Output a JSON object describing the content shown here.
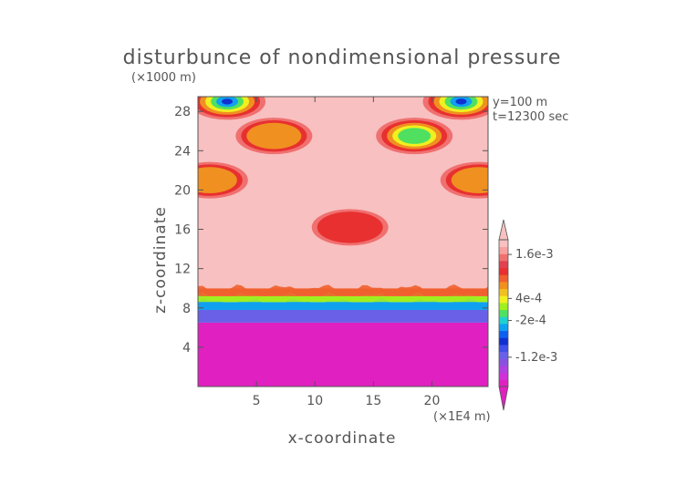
{
  "chart_data": {
    "type": "heatmap",
    "title": "disturbunce of nondimensional pressure",
    "xlabel": "x-coordinate",
    "ylabel": "z-coordinate",
    "x_unit": "(×1E4 m)",
    "y_unit": "(×1000 m)",
    "annotations": [
      "y=100 m",
      "t=12300 sec"
    ],
    "xlim": [
      0,
      24.8
    ],
    "ylim": [
      0,
      29.5
    ],
    "x_ticks": [
      5,
      10,
      15,
      20
    ],
    "x_tick_labels": [
      "5",
      "10",
      "15",
      "20"
    ],
    "y_ticks": [
      4,
      8,
      12,
      16,
      20,
      24,
      28
    ],
    "y_tick_labels": [
      "4",
      "8",
      "12",
      "16",
      "20",
      "24",
      "28"
    ],
    "colorbar": {
      "levels_min": -0.002,
      "levels_max": 0.002,
      "labels": [
        {
          "value": 0.0016,
          "text": "1.6e-3"
        },
        {
          "value": 0.0004,
          "text": "4e-4"
        },
        {
          "value": -0.0002,
          "text": "-2e-4"
        },
        {
          "value": -0.0012,
          "text": "-1.2e-3"
        }
      ],
      "colors": [
        "#e020c0",
        "#d030d8",
        "#b040e0",
        "#8a50e0",
        "#6a60e8",
        "#4050e8",
        "#1030d0",
        "#1060f0",
        "#10a0f0",
        "#20d0d0",
        "#50e060",
        "#a0f020",
        "#f0f020",
        "#f0c020",
        "#f09020",
        "#f06030",
        "#e83030",
        "#e04050",
        "#f07070",
        "#f8a0a0",
        "#f8c0c0"
      ]
    },
    "series": [
      {
        "name": "",
        "field": {
          "description_values_are_perturbation": true,
          "layers": [
            {
              "z": [
                0,
                6.5
              ],
              "value": -0.0019
            },
            {
              "z": [
                6.5,
                7.8
              ],
              "value": -0.0011
            },
            {
              "z": [
                7.8,
                8.6
              ],
              "value": -0.0004
            },
            {
              "z": [
                8.6,
                9.2
              ],
              "value": 0.0002
            },
            {
              "z": [
                9.2,
                10.0
              ],
              "value": 0.001
            },
            {
              "z": [
                10.0,
                29.5
              ],
              "value": 0.0019
            }
          ],
          "blobs": [
            {
              "x": 2.5,
              "z": 29.0,
              "value": -0.0008
            },
            {
              "x": 22.5,
              "z": 29.0,
              "value": -0.0008
            },
            {
              "x": 6.5,
              "z": 25.5,
              "value": 0.0006
            },
            {
              "x": 18.5,
              "z": 25.5,
              "value": -0.0002
            },
            {
              "x": 1.0,
              "z": 21.0,
              "value": 0.0006
            },
            {
              "x": 24.0,
              "z": 21.0,
              "value": 0.0006
            },
            {
              "x": 13.0,
              "z": 16.2,
              "value": 0.001
            }
          ]
        }
      }
    ]
  }
}
